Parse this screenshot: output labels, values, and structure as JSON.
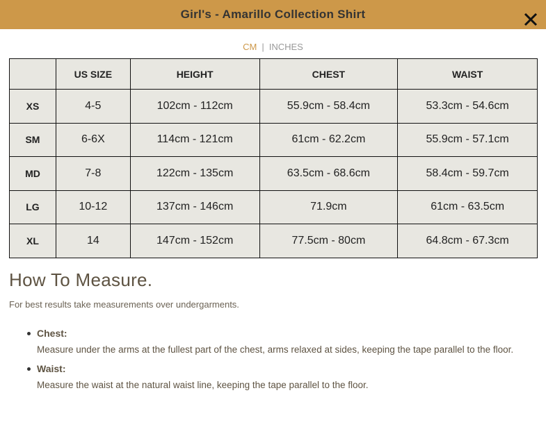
{
  "header": {
    "title": "Girl's - Amarillo Collection Shirt",
    "close_icon": "close-icon"
  },
  "units": {
    "cm": "CM",
    "separator": "|",
    "inches": "INCHES",
    "selected": "CM",
    "accent": "#cd9849"
  },
  "table": {
    "headers": [
      "",
      "US SIZE",
      "HEIGHT",
      "CHEST",
      "WAIST"
    ],
    "rows": [
      [
        "XS",
        "4-5",
        "102cm - 112cm",
        "55.9cm - 58.4cm",
        "53.3cm - 54.6cm"
      ],
      [
        "SM",
        "6-6X",
        "114cm - 121cm",
        "61cm - 62.2cm",
        "55.9cm - 57.1cm"
      ],
      [
        "MD",
        "7-8",
        "122cm - 135cm",
        "63.5cm - 68.6cm",
        "58.4cm - 59.7cm"
      ],
      [
        "LG",
        "10-12",
        "137cm - 146cm",
        "71.9cm",
        "61cm - 63.5cm"
      ],
      [
        "XL",
        "14",
        "147cm - 152cm",
        "77.5cm - 80cm",
        "64.8cm - 67.3cm"
      ]
    ]
  },
  "measure": {
    "title": "How To Measure.",
    "intro": "For best results take measurements over undergarments.",
    "items": [
      {
        "label": "Chest:",
        "text": "Measure under the arms at the fullest part of the chest, arms relaxed at sides, keeping the tape parallel to the floor."
      },
      {
        "label": "Waist:",
        "text": "Measure the waist at the natural waist line, keeping the tape parallel to the floor."
      }
    ]
  }
}
